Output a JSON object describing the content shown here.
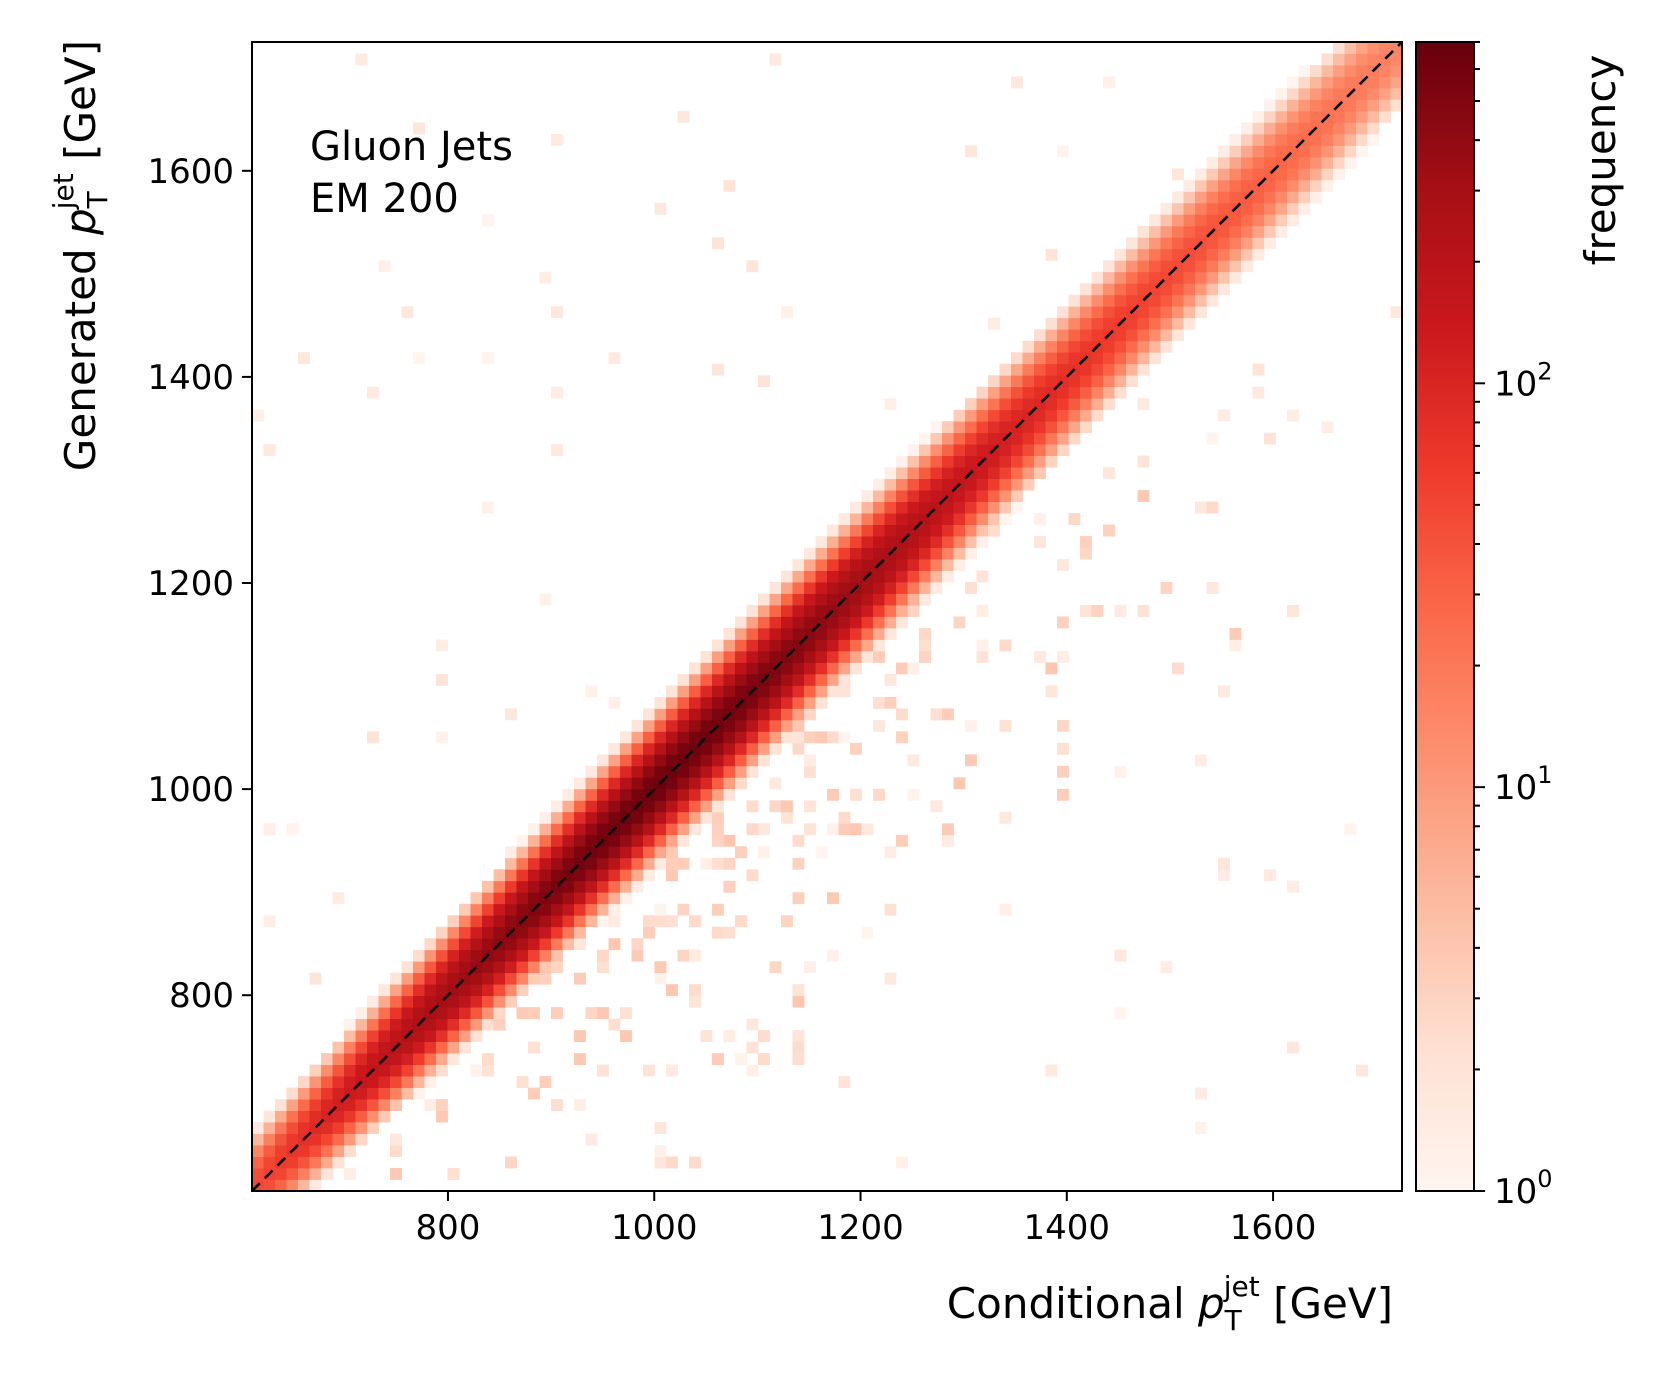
{
  "chart_data": {
    "type": "heatmap",
    "annotation": [
      "Gluon Jets",
      "EM 200"
    ],
    "xlabel": {
      "prefix": "Conditional ",
      "var": "p",
      "sub": "T",
      "sup": "jet",
      "unit": " [GeV]"
    },
    "ylabel": {
      "prefix": "Generated ",
      "var": "p",
      "sub": "T",
      "sup": "jet",
      "unit": " [GeV]"
    },
    "xlim": [
      610,
      1725
    ],
    "ylim": [
      610,
      1725
    ],
    "xticks": [
      800,
      1000,
      1200,
      1400,
      1600
    ],
    "yticks": [
      800,
      1000,
      1200,
      1400,
      1600
    ],
    "bins": 100,
    "colorbar": {
      "label": "frequency",
      "scale": "log",
      "range": [
        1,
        700
      ],
      "major_ticks": [
        {
          "value": 1,
          "base": "10",
          "exp": "0"
        },
        {
          "value": 10,
          "base": "10",
          "exp": "1"
        },
        {
          "value": 100,
          "base": "10",
          "exp": "2"
        }
      ],
      "colors": [
        "#fff5f0",
        "#fee0d2",
        "#fcbba1",
        "#fc9272",
        "#fb6a4a",
        "#ef3b2c",
        "#cb181d",
        "#a50f15",
        "#67000d"
      ]
    },
    "diagonal": {
      "style": "dashed",
      "color": "#000000",
      "from": [
        610,
        610
      ],
      "to": [
        1725,
        1725
      ]
    },
    "density_model": {
      "description_of_visible_pattern": "counts concentrated along the identity line, peak near 1000 GeV, scatter below diagonal",
      "peak_center": 1000,
      "peak_count": 650,
      "width_gev": 20
    }
  }
}
